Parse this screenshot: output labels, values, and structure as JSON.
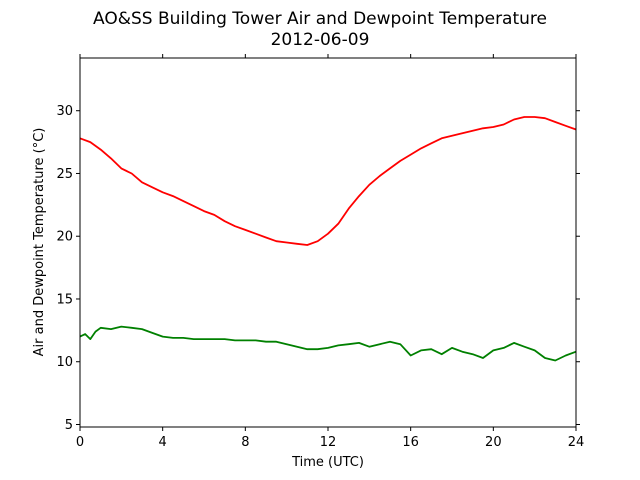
{
  "chart_data": {
    "type": "line",
    "title": "AO&SS Building Tower Air and Dewpoint Temperature",
    "subtitle": "2012-06-09",
    "xlabel": "Time (UTC)",
    "ylabel": "Air and Dewpoint Temperature (°C)",
    "xlim": [
      0,
      24
    ],
    "ylim": [
      4.8,
      34.2
    ],
    "xticks": [
      0,
      4,
      8,
      12,
      16,
      20,
      24
    ],
    "yticks": [
      5,
      10,
      15,
      20,
      25,
      30
    ],
    "xtick_labels": [
      "0",
      "4",
      "8",
      "12",
      "16",
      "20",
      "24"
    ],
    "ytick_labels": [
      "5",
      "10",
      "15",
      "20",
      "25",
      "30"
    ],
    "grid": false,
    "series": [
      {
        "color": "#ff0000",
        "x": [
          0,
          0.5,
          1,
          1.5,
          2,
          2.5,
          3,
          3.5,
          4,
          4.5,
          5,
          5.5,
          6,
          6.5,
          7,
          7.5,
          8,
          8.5,
          9,
          9.5,
          10,
          10.5,
          11,
          11.5,
          12,
          12.5,
          13,
          13.5,
          14,
          14.5,
          15,
          15.5,
          16,
          16.5,
          17,
          17.5,
          18,
          18.5,
          19,
          19.5,
          20,
          20.5,
          21,
          21.5,
          22,
          22.5,
          23,
          23.5,
          24
        ],
        "y": [
          27.8,
          27.5,
          26.9,
          26.2,
          25.4,
          25.0,
          24.3,
          23.9,
          23.5,
          23.2,
          22.8,
          22.4,
          22.0,
          21.7,
          21.2,
          20.8,
          20.5,
          20.2,
          19.9,
          19.6,
          19.5,
          19.4,
          19.3,
          19.6,
          20.2,
          21.0,
          22.2,
          23.2,
          24.1,
          24.8,
          25.4,
          26.0,
          26.5,
          27.0,
          27.4,
          27.8,
          28.0,
          28.2,
          28.4,
          28.6,
          28.7,
          28.9,
          29.3,
          29.5,
          29.5,
          29.4,
          29.1,
          28.8,
          28.5
        ]
      },
      {
        "color": "#008000",
        "x": [
          0,
          0.25,
          0.5,
          0.75,
          1,
          1.5,
          2,
          2.5,
          3,
          3.5,
          4,
          4.5,
          5,
          5.5,
          6,
          6.5,
          7,
          7.5,
          8,
          8.5,
          9,
          9.5,
          10,
          10.5,
          11,
          11.5,
          12,
          12.5,
          13,
          13.5,
          14,
          14.5,
          15,
          15.5,
          16,
          16.5,
          17,
          17.5,
          18,
          18.5,
          19,
          19.5,
          20,
          20.5,
          21,
          21.5,
          22,
          22.5,
          23,
          23.5,
          24
        ],
        "y": [
          12.0,
          12.2,
          11.8,
          12.4,
          12.7,
          12.6,
          12.8,
          12.7,
          12.6,
          12.3,
          12.0,
          11.9,
          11.9,
          11.8,
          11.8,
          11.8,
          11.8,
          11.7,
          11.7,
          11.7,
          11.6,
          11.6,
          11.4,
          11.2,
          11.0,
          11.0,
          11.1,
          11.3,
          11.4,
          11.5,
          11.2,
          11.4,
          11.6,
          11.4,
          10.5,
          10.9,
          11.0,
          10.6,
          11.1,
          10.8,
          10.6,
          10.3,
          10.9,
          11.1,
          11.5,
          11.2,
          10.9,
          10.3,
          10.1,
          10.5,
          10.8
        ]
      }
    ]
  }
}
